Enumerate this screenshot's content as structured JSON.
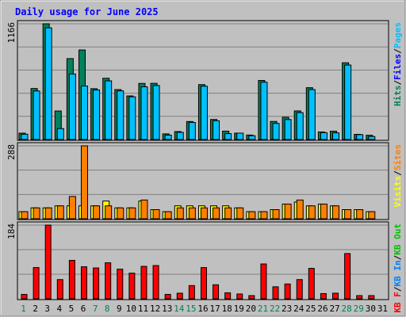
{
  "title": "Daily usage for June 2025",
  "chart_data": [
    {
      "type": "bar",
      "panel": "top",
      "ymax_label": "1166",
      "ylim": [
        0,
        1166
      ],
      "grid": true,
      "categories": [
        "1",
        "2",
        "3",
        "4",
        "5",
        "6",
        "7",
        "8",
        "9",
        "10",
        "11",
        "12",
        "13",
        "14",
        "15",
        "16",
        "17",
        "18",
        "19",
        "20",
        "21",
        "22",
        "23",
        "24",
        "25",
        "26",
        "27",
        "28",
        "29",
        "30",
        "31"
      ],
      "legend": [
        {
          "label": "Hits",
          "color": "#00805c"
        },
        {
          "label": "Files",
          "color": "#0000ff"
        },
        {
          "label": "Pages",
          "color": "#00c0ff"
        }
      ],
      "series": [
        {
          "name": "Hits",
          "color": "#00805c",
          "values": [
            64,
            514,
            1166,
            287,
            815,
            902,
            512,
            617,
            503,
            439,
            565,
            566,
            57,
            80,
            181,
            553,
            202,
            84,
            64,
            45,
            595,
            182,
            224,
            288,
            522,
            76,
            84,
            773,
            52,
            43,
            0
          ]
        },
        {
          "name": "Pages",
          "color": "#00c0ff",
          "values": [
            53,
            489,
            1125,
            110,
            660,
            539,
            499,
            591,
            490,
            430,
            531,
            544,
            44,
            72,
            172,
            537,
            189,
            59,
            64,
            38,
            577,
            162,
            201,
            271,
            503,
            69,
            67,
            750,
            49,
            30,
            0
          ]
        }
      ]
    },
    {
      "type": "bar",
      "panel": "middle",
      "ymax_label": "288",
      "ylim": [
        0,
        288
      ],
      "grid": true,
      "categories": [
        "1",
        "2",
        "3",
        "4",
        "5",
        "6",
        "7",
        "8",
        "9",
        "10",
        "11",
        "12",
        "13",
        "14",
        "15",
        "16",
        "17",
        "18",
        "19",
        "20",
        "21",
        "22",
        "23",
        "24",
        "25",
        "26",
        "27",
        "28",
        "29",
        "30",
        "31"
      ],
      "legend": [
        {
          "label": "Visits",
          "color": "#ffff00"
        },
        {
          "label": "Sites",
          "color": "#ff8000"
        }
      ],
      "series": [
        {
          "name": "Visits",
          "color": "#ffff00",
          "values": [
            28,
            43,
            43,
            51,
            51,
            51,
            51,
            70,
            43,
            43,
            70,
            36,
            28,
            51,
            51,
            51,
            51,
            51,
            43,
            28,
            28,
            36,
            58,
            66,
            51,
            58,
            51,
            36,
            36,
            28,
            0
          ]
        },
        {
          "name": "Sites",
          "color": "#ff8000",
          "values": [
            28,
            43,
            43,
            51,
            88,
            288,
            51,
            51,
            43,
            43,
            74,
            36,
            28,
            43,
            43,
            43,
            43,
            43,
            43,
            28,
            28,
            36,
            58,
            74,
            51,
            58,
            51,
            36,
            36,
            28,
            0
          ]
        }
      ]
    },
    {
      "type": "bar",
      "panel": "bottom",
      "ymax_label": "184",
      "ylim": [
        0,
        184
      ],
      "grid": true,
      "categories": [
        "1",
        "2",
        "3",
        "4",
        "5",
        "6",
        "7",
        "8",
        "9",
        "10",
        "11",
        "12",
        "13",
        "14",
        "15",
        "16",
        "17",
        "18",
        "19",
        "20",
        "21",
        "22",
        "23",
        "24",
        "25",
        "26",
        "27",
        "28",
        "29",
        "30",
        "31"
      ],
      "legend": [
        {
          "label": "KB F",
          "color": "#ff0000"
        },
        {
          "label": "KB In",
          "color": "#0080ff"
        },
        {
          "label": "KB Out",
          "color": "#00c000"
        }
      ],
      "series": [
        {
          "name": "KB F",
          "color": "#ff0000",
          "values": [
            11,
            78,
            184,
            48,
            96,
            80,
            77,
            90,
            74,
            64,
            81,
            83,
            11,
            14,
            33,
            78,
            35,
            15,
            12,
            8,
            87,
            30,
            37,
            48,
            76,
            13,
            14,
            113,
            8,
            8,
            0
          ]
        }
      ]
    }
  ],
  "day_labels": [
    {
      "text": "1",
      "color": "#00805c"
    },
    {
      "text": "2",
      "color": "#000000"
    },
    {
      "text": "3",
      "color": "#000000"
    },
    {
      "text": "4",
      "color": "#000000"
    },
    {
      "text": "5",
      "color": "#000000"
    },
    {
      "text": "6",
      "color": "#000000"
    },
    {
      "text": "7",
      "color": "#00805c"
    },
    {
      "text": "8",
      "color": "#00805c"
    },
    {
      "text": "9",
      "color": "#000000"
    },
    {
      "text": "10",
      "color": "#000000"
    },
    {
      "text": "11",
      "color": "#000000"
    },
    {
      "text": "12",
      "color": "#000000"
    },
    {
      "text": "13",
      "color": "#000000"
    },
    {
      "text": "14",
      "color": "#00805c"
    },
    {
      "text": "15",
      "color": "#00805c"
    },
    {
      "text": "16",
      "color": "#000000"
    },
    {
      "text": "17",
      "color": "#000000"
    },
    {
      "text": "18",
      "color": "#000000"
    },
    {
      "text": "19",
      "color": "#000000"
    },
    {
      "text": "20",
      "color": "#000000"
    },
    {
      "text": "21",
      "color": "#00805c"
    },
    {
      "text": "22",
      "color": "#00805c"
    },
    {
      "text": "23",
      "color": "#000000"
    },
    {
      "text": "24",
      "color": "#000000"
    },
    {
      "text": "25",
      "color": "#000000"
    },
    {
      "text": "26",
      "color": "#000000"
    },
    {
      "text": "27",
      "color": "#000000"
    },
    {
      "text": "28",
      "color": "#00805c"
    },
    {
      "text": "29",
      "color": "#00805c"
    },
    {
      "text": "30",
      "color": "#000000"
    },
    {
      "text": "31",
      "color": "#000000"
    }
  ],
  "colors": {
    "background": "#c0c0c0",
    "plot_background": "#c0c0c0",
    "grid": "#808080",
    "title": "#0000ff",
    "legend_separator": "#000000"
  }
}
